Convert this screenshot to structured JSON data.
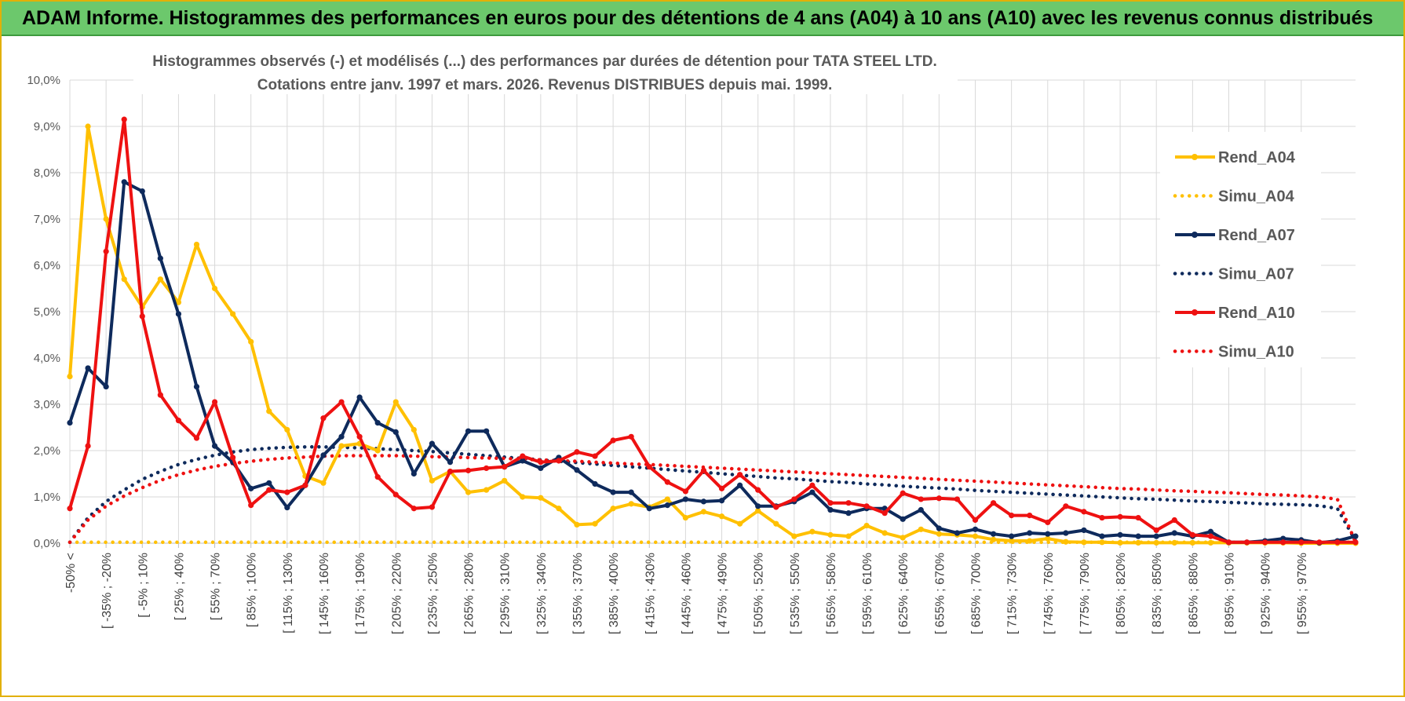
{
  "header": {
    "title": "ADAM Informe. Histogrammes des performances en euros pour des détentions de 4 ans (A04) à 10 ans (A10) avec les revenus connus distribués"
  },
  "chart_data": {
    "type": "line",
    "title_line1": "Histogrammes observés (-) et modélisés (...) des performances par durées de détention pour TATA STEEL LTD.",
    "title_line2": "Cotations entre janv. 1997 et mars. 2026. Revenus DISTRIBUES depuis mai. 1999.",
    "ylim": [
      0,
      10
    ],
    "y_ticks": [
      "0,0%",
      "1,0%",
      "2,0%",
      "3,0%",
      "4,0%",
      "5,0%",
      "6,0%",
      "7,0%",
      "8,0%",
      "9,0%",
      "10,0%"
    ],
    "legend_position": "right",
    "x_labels": [
      "-50% <",
      "[ -35% ; -20%",
      "[ -5% ; 10%",
      "[ 25% ; 40%",
      "[ 55% ; 70%",
      "[ 85% ; 100%",
      "[ 115% ; 130%",
      "[ 145% ; 160%",
      "[ 175% ; 190%",
      "[ 205% ; 220%",
      "[ 235% ; 250%",
      "[ 265% ; 280%",
      "[ 295% ; 310%",
      "[ 325% ; 340%",
      "[ 355% ; 370%",
      "[ 385% ; 400%",
      "[ 415% ; 430%",
      "[ 445% ; 460%",
      "[ 475% ; 490%",
      "[ 505% ; 520%",
      "[ 535% ; 550%",
      "[ 565% ; 580%",
      "[ 595% ; 610%",
      "[ 625% ; 640%",
      "[ 655% ; 670%",
      "[ 685% ; 700%",
      "[ 715% ; 730%",
      "[ 745% ; 760%",
      "[ 775% ; 790%",
      "[ 805% ; 820%",
      "[ 835% ; 850%",
      "[ 865% ; 880%",
      "[ 895% ; 910%",
      "[ 925% ; 940%",
      "[ 955% ; 970%"
    ],
    "series": [
      {
        "name": "Rend_A04",
        "color": "#ffc000",
        "style": "solid",
        "values": [
          3.6,
          9.0,
          7.0,
          5.7,
          5.1,
          5.7,
          5.2,
          6.45,
          5.5,
          4.95,
          4.35,
          2.85,
          2.45,
          1.45,
          1.3,
          2.1,
          2.15,
          2.0,
          3.05,
          2.45,
          1.35,
          1.55,
          1.1,
          1.15,
          1.35,
          1.0,
          0.98,
          0.75,
          0.4,
          0.42,
          0.75,
          0.85,
          0.78,
          0.95,
          0.55,
          0.68,
          0.58,
          0.42,
          0.7,
          0.42,
          0.15,
          0.25,
          0.18,
          0.15,
          0.38,
          0.22,
          0.12,
          0.3,
          0.2,
          0.18,
          0.15,
          0.08,
          0.05,
          0.05,
          0.1,
          0.03,
          0.02,
          0.02,
          0.01,
          0.01,
          0.01,
          0.01,
          0.01,
          0.01,
          0.01,
          0.01,
          0.01,
          0.01,
          0.0,
          0.0,
          0.0,
          0.0
        ]
      },
      {
        "name": "Simu_A04",
        "color": "#ffc000",
        "style": "dotted",
        "values": [
          0.02,
          0.02,
          0.02,
          0.02,
          0.02,
          0.02,
          0.02,
          0.02,
          0.02,
          0.02,
          0.02,
          0.02,
          0.02,
          0.02,
          0.02,
          0.02,
          0.02,
          0.02,
          0.02,
          0.02,
          0.02,
          0.02,
          0.02,
          0.02,
          0.02,
          0.02,
          0.02,
          0.02,
          0.02,
          0.02,
          0.02,
          0.02,
          0.02,
          0.02,
          0.02,
          0.02,
          0.02,
          0.02,
          0.02,
          0.02,
          0.02,
          0.02,
          0.02,
          0.02,
          0.02,
          0.02,
          0.02,
          0.02,
          0.02,
          0.02,
          0.02,
          0.02,
          0.02,
          0.02,
          0.02,
          0.02,
          0.02,
          0.02,
          0.02,
          0.02,
          0.02,
          0.02,
          0.02,
          0.02,
          0.02,
          0.02,
          0.02,
          0.02,
          0.02,
          0.02,
          0.02,
          0.02
        ]
      },
      {
        "name": "Rend_A07",
        "color": "#0e2a5c",
        "style": "solid",
        "values": [
          2.6,
          3.78,
          3.38,
          7.8,
          7.6,
          6.15,
          4.95,
          3.38,
          2.1,
          1.75,
          1.18,
          1.3,
          0.77,
          1.25,
          1.9,
          2.3,
          3.15,
          2.6,
          2.4,
          1.5,
          2.15,
          1.75,
          2.42,
          2.42,
          1.65,
          1.78,
          1.62,
          1.85,
          1.58,
          1.28,
          1.1,
          1.1,
          0.75,
          0.82,
          0.95,
          0.9,
          0.92,
          1.25,
          0.8,
          0.8,
          0.9,
          1.1,
          0.72,
          0.65,
          0.75,
          0.75,
          0.52,
          0.72,
          0.32,
          0.22,
          0.3,
          0.2,
          0.15,
          0.22,
          0.2,
          0.22,
          0.28,
          0.15,
          0.18,
          0.15,
          0.15,
          0.22,
          0.15,
          0.25,
          0.02,
          0.02,
          0.05,
          0.1,
          0.07,
          0.01,
          0.05,
          0.15
        ]
      },
      {
        "name": "Simu_A07",
        "color": "#0e2a5c",
        "style": "dotted",
        "values": [
          0.02,
          0.55,
          0.9,
          1.15,
          1.38,
          1.55,
          1.7,
          1.81,
          1.9,
          1.97,
          2.02,
          2.05,
          2.07,
          2.08,
          2.08,
          2.07,
          2.06,
          2.04,
          2.02,
          2.0,
          1.98,
          1.95,
          1.92,
          1.89,
          1.86,
          1.83,
          1.8,
          1.77,
          1.74,
          1.71,
          1.68,
          1.65,
          1.62,
          1.59,
          1.56,
          1.53,
          1.5,
          1.47,
          1.44,
          1.41,
          1.39,
          1.36,
          1.33,
          1.31,
          1.28,
          1.26,
          1.23,
          1.21,
          1.19,
          1.17,
          1.14,
          1.12,
          1.1,
          1.08,
          1.06,
          1.04,
          1.02,
          1.0,
          0.98,
          0.96,
          0.95,
          0.93,
          0.91,
          0.9,
          0.88,
          0.87,
          0.85,
          0.84,
          0.83,
          0.81,
          0.75,
          0.05
        ]
      },
      {
        "name": "Rend_A10",
        "color": "#ee1111",
        "style": "solid",
        "values": [
          0.75,
          2.1,
          6.3,
          9.15,
          4.9,
          3.2,
          2.65,
          2.27,
          3.05,
          1.85,
          0.82,
          1.15,
          1.1,
          1.25,
          2.7,
          3.05,
          2.3,
          1.43,
          1.05,
          0.75,
          0.78,
          1.55,
          1.57,
          1.62,
          1.65,
          1.88,
          1.75,
          1.78,
          1.97,
          1.88,
          2.22,
          2.3,
          1.65,
          1.32,
          1.12,
          1.57,
          1.18,
          1.48,
          1.15,
          0.78,
          0.95,
          1.25,
          0.87,
          0.87,
          0.8,
          0.65,
          1.08,
          0.95,
          0.97,
          0.95,
          0.5,
          0.87,
          0.6,
          0.6,
          0.45,
          0.8,
          0.68,
          0.55,
          0.57,
          0.55,
          0.28,
          0.5,
          0.18,
          0.15,
          0.02,
          0.02,
          0.02,
          0.02,
          0.02,
          0.02,
          0.02,
          0.02
        ]
      },
      {
        "name": "Simu_A10",
        "color": "#ee1111",
        "style": "dotted",
        "values": [
          0.02,
          0.5,
          0.8,
          1.02,
          1.2,
          1.36,
          1.48,
          1.58,
          1.66,
          1.72,
          1.77,
          1.81,
          1.84,
          1.86,
          1.88,
          1.89,
          1.89,
          1.89,
          1.89,
          1.88,
          1.87,
          1.86,
          1.85,
          1.84,
          1.83,
          1.81,
          1.8,
          1.78,
          1.77,
          1.75,
          1.73,
          1.71,
          1.7,
          1.68,
          1.66,
          1.64,
          1.62,
          1.6,
          1.58,
          1.56,
          1.54,
          1.52,
          1.5,
          1.48,
          1.46,
          1.44,
          1.42,
          1.4,
          1.38,
          1.36,
          1.34,
          1.32,
          1.3,
          1.28,
          1.26,
          1.24,
          1.22,
          1.2,
          1.18,
          1.17,
          1.15,
          1.13,
          1.12,
          1.1,
          1.09,
          1.07,
          1.05,
          1.04,
          1.02,
          1.0,
          0.95,
          0.02
        ]
      }
    ]
  }
}
